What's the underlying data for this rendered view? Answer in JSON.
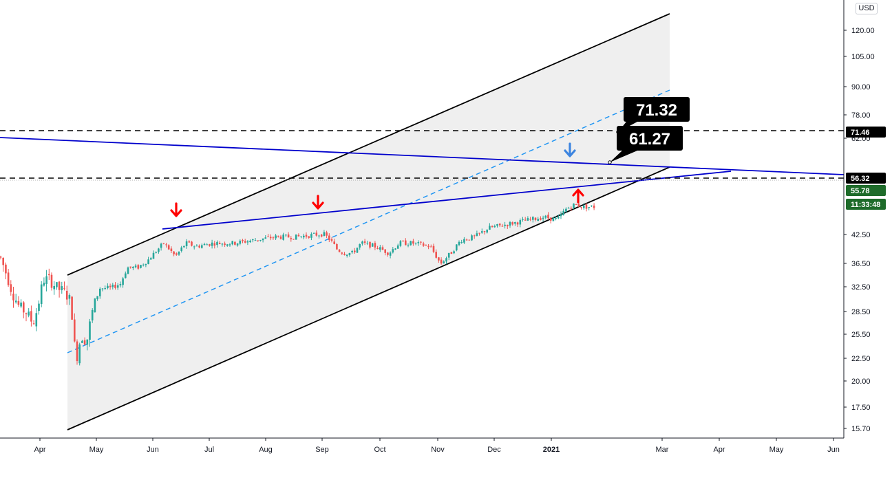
{
  "chart_data": {
    "type": "candlestick",
    "y_scale": "log",
    "currency": "USD",
    "x_ticks": [
      "Apr",
      "May",
      "Jun",
      "Jul",
      "Aug",
      "Sep",
      "Oct",
      "Nov",
      "Dec",
      "2021",
      "Mar",
      "Apr",
      "May",
      "Jun"
    ],
    "y_ticks": [
      "120.00",
      "105.00",
      "90.00",
      "78.00",
      "62.00",
      "42.50",
      "36.50",
      "32.50",
      "28.50",
      "25.50",
      "22.50",
      "20.00",
      "17.50",
      "15.70"
    ],
    "price_labels": [
      {
        "value": "71.46",
        "bg": "#000000",
        "fg": "#ffffff"
      },
      {
        "value": "56.32",
        "bg": "#000000",
        "fg": "#ffffff"
      },
      {
        "value": "55.78",
        "bg": "#1e6b2a",
        "fg": "#ffffff"
      },
      {
        "value": "11:33:48",
        "bg": "#1e6b2a",
        "fg": "#ffffff"
      }
    ],
    "callouts": [
      "71.32",
      "61.27"
    ],
    "horizontal_levels": [
      71.46,
      56.32
    ],
    "annotations": {
      "red_down_arrows": 2,
      "red_up_arrows": 1,
      "blue_down_arrows": 1
    },
    "colors": {
      "up_candle": "#26a69a",
      "down_candle": "#ef5350",
      "channel_fill": "#efefef",
      "trendline": "#0000cc",
      "midline": "#2196f3",
      "arrow_red": "#ff0000",
      "arrow_blue": "#3d85e0"
    }
  }
}
